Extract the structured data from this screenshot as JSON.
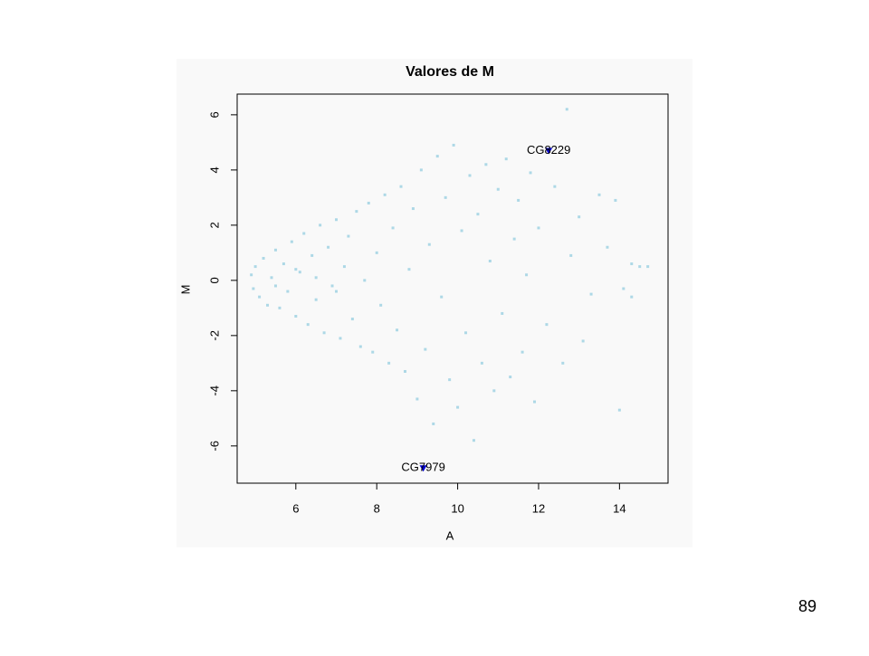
{
  "page_number": "89",
  "chart_data": {
    "type": "scatter",
    "title": "Valores de M",
    "x_label": "A",
    "y_label": "M",
    "color": "#add8e6",
    "x": [
      4.9,
      4.95,
      5.0,
      5.1,
      5.2,
      5.3,
      5.4,
      5.5,
      5.6,
      5.7,
      5.8,
      5.9,
      6.0,
      6.1,
      6.2,
      6.3,
      6.4,
      6.5,
      6.6,
      6.7,
      6.8,
      6.9,
      7.0,
      7.1,
      7.2,
      7.3,
      7.4,
      7.5,
      7.6,
      7.7,
      7.8,
      7.9,
      8.0,
      8.1,
      8.2,
      8.3,
      8.4,
      8.5,
      8.6,
      8.7,
      8.8,
      8.9,
      9.0,
      9.1,
      9.2,
      9.3,
      9.4,
      9.5,
      9.6,
      9.7,
      9.8,
      9.9,
      10.0,
      10.1,
      10.2,
      10.3,
      10.4,
      10.5,
      10.6,
      10.7,
      10.8,
      10.9,
      11.0,
      11.1,
      11.2,
      11.3,
      11.4,
      11.5,
      11.6,
      11.7,
      11.8,
      11.9,
      12.0,
      12.2,
      12.4,
      12.6,
      12.7,
      12.8,
      13.0,
      13.1,
      13.3,
      13.5,
      13.7,
      13.9,
      14.0,
      14.1,
      14.3,
      14.5,
      14.7,
      14.3,
      6.5,
      7.0,
      5.5,
      6.0
    ],
    "values": [
      0.2,
      -0.3,
      0.5,
      -0.6,
      0.8,
      -0.9,
      0.1,
      1.1,
      -1.0,
      0.6,
      -0.4,
      1.4,
      -1.3,
      0.3,
      1.7,
      -1.6,
      0.9,
      -0.7,
      2.0,
      -1.9,
      1.2,
      -0.2,
      2.2,
      -2.1,
      0.5,
      1.6,
      -1.4,
      2.5,
      -2.4,
      0.0,
      2.8,
      -2.6,
      1.0,
      -0.9,
      3.1,
      -3.0,
      1.9,
      -1.8,
      3.4,
      -3.3,
      0.4,
      2.6,
      -4.3,
      4.0,
      -2.5,
      1.3,
      -5.2,
      4.5,
      -0.6,
      3.0,
      -3.6,
      4.9,
      -4.6,
      1.8,
      -1.9,
      3.8,
      -5.8,
      2.4,
      -3.0,
      4.2,
      0.7,
      -4.0,
      3.3,
      -1.2,
      4.4,
      -3.5,
      1.5,
      2.9,
      -2.6,
      0.2,
      3.9,
      -4.4,
      1.9,
      -1.6,
      3.4,
      -3.0,
      6.2,
      0.9,
      2.3,
      -2.2,
      -0.5,
      3.1,
      1.2,
      2.9,
      -4.7,
      -0.3,
      0.6,
      0.5,
      0.5,
      -0.6,
      0.1,
      -0.4,
      -0.2,
      0.4
    ],
    "highlights": [
      {
        "label": "CG8229",
        "x": 12.25,
        "y": 4.7
      },
      {
        "label": "CG7979",
        "x": 9.15,
        "y": -6.8
      }
    ],
    "highlight_color": "#0000cd",
    "xlim": [
      4.55,
      15.2
    ],
    "ylim": [
      -7.35,
      6.75
    ],
    "xticks": [
      6,
      8,
      10,
      12,
      14
    ],
    "yticks": [
      -6,
      -4,
      -2,
      0,
      2,
      4,
      6
    ]
  }
}
